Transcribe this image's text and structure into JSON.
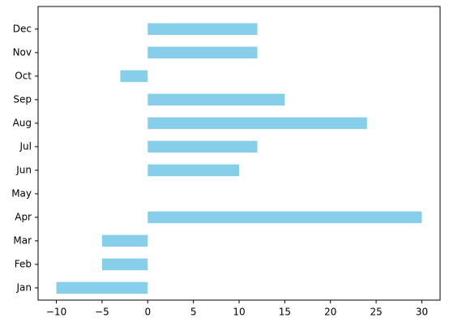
{
  "chart_data": {
    "type": "barh",
    "categories": [
      "Jan",
      "Feb",
      "Mar",
      "Apr",
      "May",
      "Jun",
      "Jul",
      "Aug",
      "Sep",
      "Oct",
      "Nov",
      "Dec"
    ],
    "values": [
      -10,
      -5,
      -5,
      30,
      0,
      10,
      12,
      24,
      15,
      -3,
      12,
      12
    ],
    "color": "#87ceeb",
    "xlim": [
      -12,
      32
    ],
    "xticks": [
      {
        "value": -10,
        "label": "−10"
      },
      {
        "value": -5,
        "label": "−5"
      },
      0,
      5,
      10,
      15,
      20,
      25,
      30
    ],
    "grid": false
  }
}
